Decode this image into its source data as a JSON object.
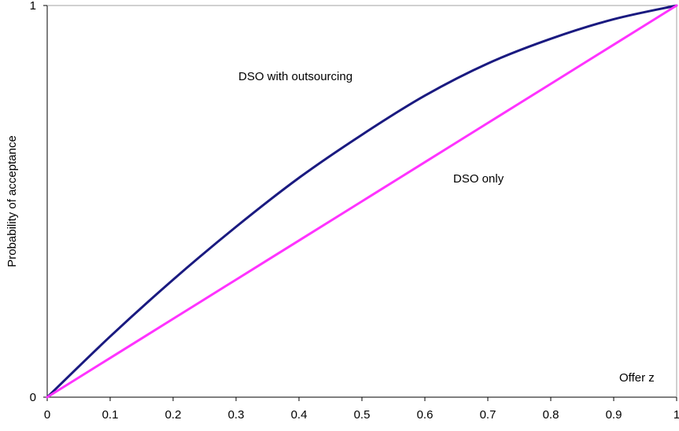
{
  "chart_data": {
    "type": "line",
    "title": "",
    "xlabel": "Offer z",
    "ylabel": "Probability of acceptance",
    "xlim": [
      0,
      1
    ],
    "ylim": [
      0,
      1
    ],
    "x_ticks": [
      "0",
      "0.1",
      "0.2",
      "0.3",
      "0.4",
      "0.5",
      "0.6",
      "0.7",
      "0.8",
      "0.9",
      "1"
    ],
    "y_ticks": [
      "0",
      "1"
    ],
    "grid": false,
    "legend": "none",
    "series": [
      {
        "name": "DSO with outsourcing",
        "color": "#1a1a80",
        "x": [
          0,
          0.1,
          0.2,
          0.3,
          0.4,
          0.5,
          0.6,
          0.7,
          0.8,
          0.9,
          1
        ],
        "y": [
          0,
          0.155,
          0.3,
          0.435,
          0.56,
          0.67,
          0.77,
          0.852,
          0.915,
          0.965,
          1
        ]
      },
      {
        "name": "DSO only",
        "color": "#ff33ff",
        "x": [
          0,
          0.1,
          0.2,
          0.3,
          0.4,
          0.5,
          0.6,
          0.7,
          0.8,
          0.9,
          1
        ],
        "y": [
          0,
          0.1,
          0.2,
          0.3,
          0.4,
          0.5,
          0.6,
          0.7,
          0.8,
          0.9,
          1
        ]
      }
    ]
  }
}
